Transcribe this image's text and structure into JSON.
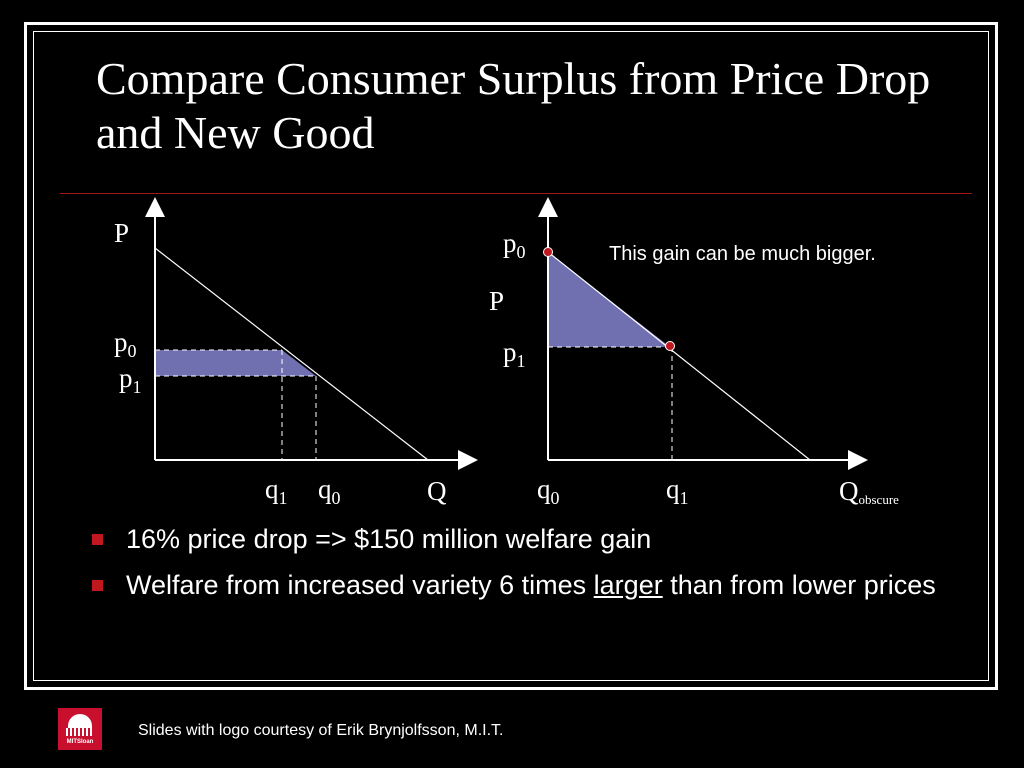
{
  "slide": {
    "title": "Compare Consumer Surplus from Price Drop and New Good",
    "bullets": [
      {
        "text": "16% price drop => $150 million welfare gain"
      },
      {
        "text_before": "Welfare from increased variety 6 times ",
        "text_emphasis": "larger",
        "text_after": " than from lower prices"
      }
    ]
  },
  "diagram_left": {
    "y_axis_label": "P",
    "x_axis_label": "Q",
    "price_labels": {
      "p0": "p",
      "p0_sub": "0",
      "p1": "p",
      "p1_sub": "1"
    },
    "quantity_labels": {
      "q1": "q",
      "q1_sub": "1",
      "q0": "q",
      "q0_sub": "0"
    }
  },
  "diagram_right": {
    "y_axis_label": "P",
    "x_axis_label": "Q",
    "x_axis_label_sub": "obscure",
    "price_labels": {
      "p0": "p",
      "p0_sub": "0",
      "p1": "p",
      "p1_sub": "1"
    },
    "quantity_labels": {
      "q0": "q",
      "q0_sub": "0",
      "q1": "q",
      "q1_sub": "1"
    },
    "annotation": "This gain can be much bigger."
  },
  "colors": {
    "surplus_fill": "#7070b0",
    "marker": "#c0181e",
    "rule": "#a01818"
  },
  "footer": {
    "logo_text": "MITSloan",
    "credit": "Slides with logo courtesy of Erik Brynjolfsson, M.I.T."
  }
}
